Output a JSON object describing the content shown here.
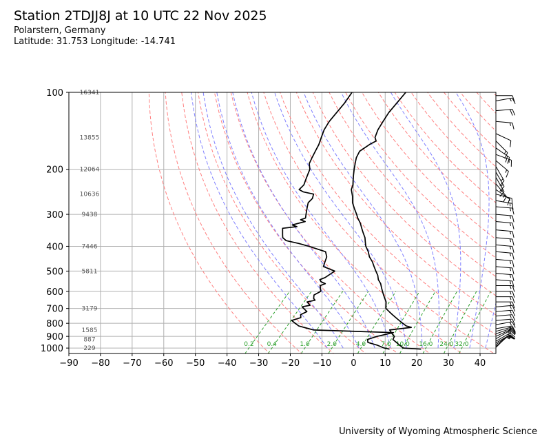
{
  "header": {
    "title": "Station 2TDJJ8J at 10 UTC 22 Nov 2025",
    "subtitle_location": "Polarstern, Germany",
    "subtitle_coords": "Latitude: 31.753 Longitude: -14.741"
  },
  "footer": {
    "credit": "University of Wyoming Atmospheric Science"
  },
  "chart_data": {
    "type": "skew-t",
    "xlabel": "",
    "ylabel": "",
    "xlim": [
      -90,
      45
    ],
    "ylim": [
      1050,
      100
    ],
    "yscale": "log",
    "grid": true,
    "x_ticks": [
      "−90",
      "−80",
      "−70",
      "−60",
      "−50",
      "−40",
      "−30",
      "−20",
      "−10",
      "0",
      "10",
      "20",
      "30",
      "40"
    ],
    "y_ticks": [
      {
        "p": 100,
        "label": "100"
      },
      {
        "p": 200,
        "label": "200"
      },
      {
        "p": 300,
        "label": "300"
      },
      {
        "p": 400,
        "label": "400"
      },
      {
        "p": 500,
        "label": "500"
      },
      {
        "p": 600,
        "label": "600"
      },
      {
        "p": 700,
        "label": "700"
      },
      {
        "p": 800,
        "label": "800"
      },
      {
        "p": 900,
        "label": "900"
      },
      {
        "p": 1000,
        "label": "1000"
      }
    ],
    "height_labels": [
      {
        "p": 100,
        "label": "16341"
      },
      {
        "p": 150,
        "label": "13855"
      },
      {
        "p": 200,
        "label": "12064"
      },
      {
        "p": 250,
        "label": "10636"
      },
      {
        "p": 300,
        "label": "9438"
      },
      {
        "p": 400,
        "label": "7446"
      },
      {
        "p": 500,
        "label": "5811"
      },
      {
        "p": 700,
        "label": "3179"
      },
      {
        "p": 850,
        "label": "1585"
      },
      {
        "p": 925,
        "label": "887"
      },
      {
        "p": 1000,
        "label": "229"
      }
    ],
    "mixing_ratio_labels": [
      "0.2",
      "0.4",
      "1.0",
      "2.0",
      "4.0",
      "7.0",
      "10.0",
      "16.0",
      "24.0",
      "32.0"
    ],
    "mixing_ratios": [
      0.2,
      0.4,
      1.0,
      2.0,
      4.0,
      7.0,
      10.0,
      16.0,
      24.0,
      32.0
    ],
    "series": [
      {
        "role": "temperature",
        "color": "#000000",
        "points": [
          [
            1010,
            20
          ],
          [
            1000,
            14
          ],
          [
            975,
            12
          ],
          [
            950,
            10
          ],
          [
            925,
            8
          ],
          [
            900,
            7.5
          ],
          [
            880,
            6
          ],
          [
            850,
            4
          ],
          [
            830,
            10
          ],
          [
            820,
            8
          ],
          [
            800,
            6
          ],
          [
            780,
            4
          ],
          [
            760,
            2
          ],
          [
            740,
            0
          ],
          [
            720,
            -2
          ],
          [
            700,
            -4
          ],
          [
            680,
            -5
          ],
          [
            660,
            -6
          ],
          [
            640,
            -7.5
          ],
          [
            620,
            -9
          ],
          [
            600,
            -10.5
          ],
          [
            580,
            -12
          ],
          [
            560,
            -13.5
          ],
          [
            540,
            -15.5
          ],
          [
            520,
            -17
          ],
          [
            500,
            -19
          ],
          [
            480,
            -21
          ],
          [
            460,
            -23
          ],
          [
            440,
            -25.5
          ],
          [
            420,
            -27.5
          ],
          [
            400,
            -30
          ],
          [
            385,
            -31.5
          ],
          [
            370,
            -33
          ],
          [
            355,
            -35
          ],
          [
            340,
            -37
          ],
          [
            325,
            -39
          ],
          [
            310,
            -41.5
          ],
          [
            300,
            -43
          ],
          [
            285,
            -45.5
          ],
          [
            270,
            -48
          ],
          [
            255,
            -50
          ],
          [
            240,
            -52.5
          ],
          [
            230,
            -53.5
          ],
          [
            220,
            -55
          ],
          [
            210,
            -56.5
          ],
          [
            200,
            -58
          ],
          [
            190,
            -59.5
          ],
          [
            180,
            -61
          ],
          [
            170,
            -62
          ],
          [
            160,
            -61
          ],
          [
            155,
            -60
          ],
          [
            150,
            -61.5
          ],
          [
            140,
            -63
          ],
          [
            130,
            -64
          ],
          [
            120,
            -65
          ],
          [
            110,
            -65.5
          ],
          [
            100,
            -66
          ]
        ]
      },
      {
        "role": "dewpoint",
        "color": "#000000",
        "points": [
          [
            1010,
            10
          ],
          [
            1000,
            8
          ],
          [
            975,
            5
          ],
          [
            950,
            1
          ],
          [
            925,
            0
          ],
          [
            900,
            2
          ],
          [
            870,
            6
          ],
          [
            850,
            -20
          ],
          [
            840,
            -22
          ],
          [
            820,
            -26
          ],
          [
            800,
            -28
          ],
          [
            780,
            -30
          ],
          [
            760,
            -28
          ],
          [
            740,
            -29
          ],
          [
            720,
            -28
          ],
          [
            700,
            -30
          ],
          [
            690,
            -31
          ],
          [
            680,
            -29
          ],
          [
            670,
            -30
          ],
          [
            660,
            -31
          ],
          [
            650,
            -29
          ],
          [
            640,
            -30
          ],
          [
            620,
            -31
          ],
          [
            600,
            -30
          ],
          [
            585,
            -31
          ],
          [
            570,
            -32
          ],
          [
            560,
            -31
          ],
          [
            550,
            -33
          ],
          [
            540,
            -34
          ],
          [
            530,
            -33
          ],
          [
            500,
            -32
          ],
          [
            480,
            -37
          ],
          [
            460,
            -38
          ],
          [
            440,
            -39
          ],
          [
            420,
            -41
          ],
          [
            400,
            -48
          ],
          [
            390,
            -52
          ],
          [
            380,
            -57
          ],
          [
            370,
            -59
          ],
          [
            360,
            -60
          ],
          [
            350,
            -61
          ],
          [
            340,
            -62
          ],
          [
            335,
            -58
          ],
          [
            330,
            -60
          ],
          [
            320,
            -57
          ],
          [
            315,
            -59
          ],
          [
            310,
            -58
          ],
          [
            300,
            -59
          ],
          [
            290,
            -60
          ],
          [
            280,
            -61
          ],
          [
            270,
            -62
          ],
          [
            260,
            -62
          ],
          [
            250,
            -63
          ],
          [
            245,
            -67
          ],
          [
            240,
            -69
          ],
          [
            230,
            -69
          ],
          [
            220,
            -70
          ],
          [
            210,
            -71
          ],
          [
            200,
            -72
          ],
          [
            190,
            -74
          ],
          [
            180,
            -75
          ],
          [
            170,
            -76
          ],
          [
            160,
            -77
          ],
          [
            150,
            -78.5
          ],
          [
            140,
            -80
          ],
          [
            130,
            -81
          ],
          [
            120,
            -81.5
          ],
          [
            110,
            -82
          ],
          [
            100,
            -83
          ]
        ]
      }
    ],
    "wind_barbs": [
      {
        "p": 995,
        "dir": 45,
        "spd": 10
      },
      {
        "p": 985,
        "dir": 50,
        "spd": 15
      },
      {
        "p": 970,
        "dir": 55,
        "spd": 15
      },
      {
        "p": 955,
        "dir": 60,
        "spd": 15
      },
      {
        "p": 940,
        "dir": 60,
        "spd": 20
      },
      {
        "p": 920,
        "dir": 60,
        "spd": 15
      },
      {
        "p": 900,
        "dir": 65,
        "spd": 15
      },
      {
        "p": 880,
        "dir": 70,
        "spd": 15
      },
      {
        "p": 860,
        "dir": 75,
        "spd": 15
      },
      {
        "p": 840,
        "dir": 80,
        "spd": 15
      },
      {
        "p": 810,
        "dir": 80,
        "spd": 15
      },
      {
        "p": 780,
        "dir": 85,
        "spd": 15
      },
      {
        "p": 750,
        "dir": 85,
        "spd": 15
      },
      {
        "p": 720,
        "dir": 85,
        "spd": 15
      },
      {
        "p": 690,
        "dir": 85,
        "spd": 15
      },
      {
        "p": 660,
        "dir": 90,
        "spd": 15
      },
      {
        "p": 630,
        "dir": 90,
        "spd": 15
      },
      {
        "p": 600,
        "dir": 90,
        "spd": 15
      },
      {
        "p": 570,
        "dir": 90,
        "spd": 15
      },
      {
        "p": 540,
        "dir": 95,
        "spd": 15
      },
      {
        "p": 510,
        "dir": 95,
        "spd": 15
      },
      {
        "p": 480,
        "dir": 95,
        "spd": 15
      },
      {
        "p": 450,
        "dir": 95,
        "spd": 15
      },
      {
        "p": 420,
        "dir": 95,
        "spd": 15
      },
      {
        "p": 395,
        "dir": 95,
        "spd": 15
      },
      {
        "p": 370,
        "dir": 95,
        "spd": 15
      },
      {
        "p": 345,
        "dir": 95,
        "spd": 15
      },
      {
        "p": 320,
        "dir": 95,
        "spd": 15
      },
      {
        "p": 300,
        "dir": 95,
        "spd": 15
      },
      {
        "p": 280,
        "dir": 95,
        "spd": 15
      },
      {
        "p": 265,
        "dir": 100,
        "spd": 15
      },
      {
        "p": 250,
        "dir": 105,
        "spd": 15
      },
      {
        "p": 240,
        "dir": 125,
        "spd": 10
      },
      {
        "p": 228,
        "dir": 140,
        "spd": 15
      },
      {
        "p": 215,
        "dir": 150,
        "spd": 15
      },
      {
        "p": 205,
        "dir": 150,
        "spd": 15
      },
      {
        "p": 195,
        "dir": 150,
        "spd": 15
      },
      {
        "p": 185,
        "dir": 130,
        "spd": 15
      },
      {
        "p": 175,
        "dir": 110,
        "spd": 15
      },
      {
        "p": 165,
        "dir": 125,
        "spd": 20
      },
      {
        "p": 155,
        "dir": 135,
        "spd": 15
      },
      {
        "p": 145,
        "dir": 115,
        "spd": 10
      },
      {
        "p": 130,
        "dir": 95,
        "spd": 15
      },
      {
        "p": 118,
        "dir": 85,
        "spd": 20
      },
      {
        "p": 108,
        "dir": 80,
        "spd": 15
      },
      {
        "p": 103,
        "dir": 90,
        "spd": 10
      }
    ],
    "colors": {
      "dry_adiabat": "#ff7f7f",
      "moist_adiabat": "#7f7fff",
      "mixing_ratio": "#2ca02c",
      "isobar_isotherm_grid": "#b0b0b0",
      "sounding": "#000000",
      "height_label": "#555555"
    }
  }
}
